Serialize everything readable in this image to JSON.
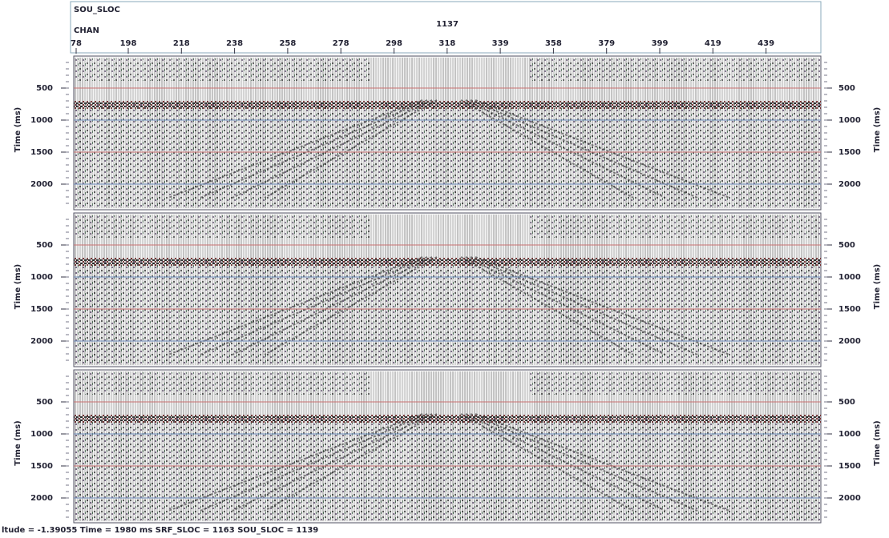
{
  "header": {
    "key_label": "SOU_SLOC",
    "key_value": "1137",
    "channel_label": "CHAN",
    "channel_ticks": [
      "78",
      "198",
      "218",
      "238",
      "258",
      "278",
      "298",
      "318",
      "339",
      "358",
      "379",
      "399",
      "419",
      "439"
    ]
  },
  "panels": [
    {
      "axis_label": "Time (ms)",
      "ticks": [
        500,
        1000,
        1500,
        2000
      ]
    },
    {
      "axis_label": "Time (ms)",
      "ticks": [
        500,
        1000,
        1500,
        2000
      ]
    },
    {
      "axis_label": "Time (ms)",
      "ticks": [
        500,
        1000,
        1500,
        2000
      ]
    }
  ],
  "status": "ltude = -1.39055  Time = 1980 ms  SRF_SLOC = 1163  SOU_SLOC = 1139"
}
